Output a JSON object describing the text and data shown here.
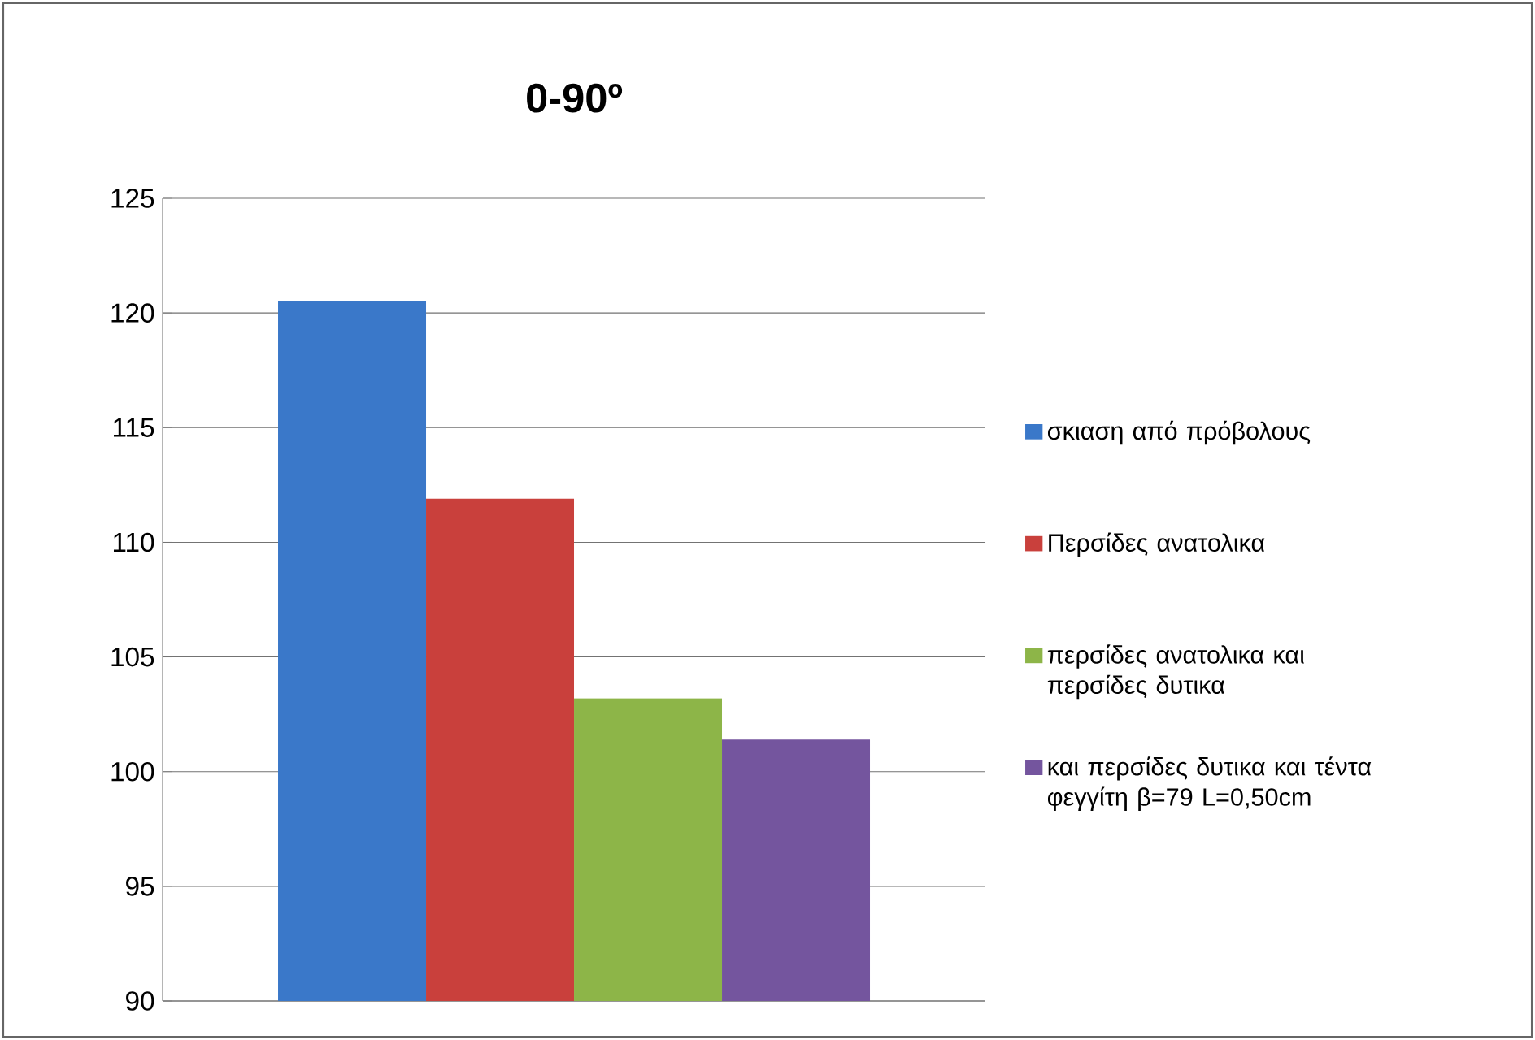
{
  "chart_data": {
    "type": "bar",
    "title": "0-90º",
    "categories": [
      null
    ],
    "series": [
      {
        "name": "σκιαση από πρόβολους",
        "color": "#3a78c9",
        "values": [
          120.5
        ]
      },
      {
        "name": "Περσίδες ανατολικα",
        "color": "#c9403c",
        "values": [
          111.9
        ]
      },
      {
        "name": "περσίδες ανατολικα και περσίδες δυτικα",
        "color": "#8db548",
        "values": [
          103.2
        ]
      },
      {
        "name": "και περσίδες δυτικα και τέντα φεγγίτη β=79 L=0,50cm",
        "color": "#74559e",
        "values": [
          101.4
        ]
      }
    ],
    "ylim": [
      90,
      125
    ],
    "yticks": [
      90,
      95,
      100,
      105,
      110,
      115,
      120,
      125
    ],
    "grid": "y",
    "legend": "right"
  }
}
